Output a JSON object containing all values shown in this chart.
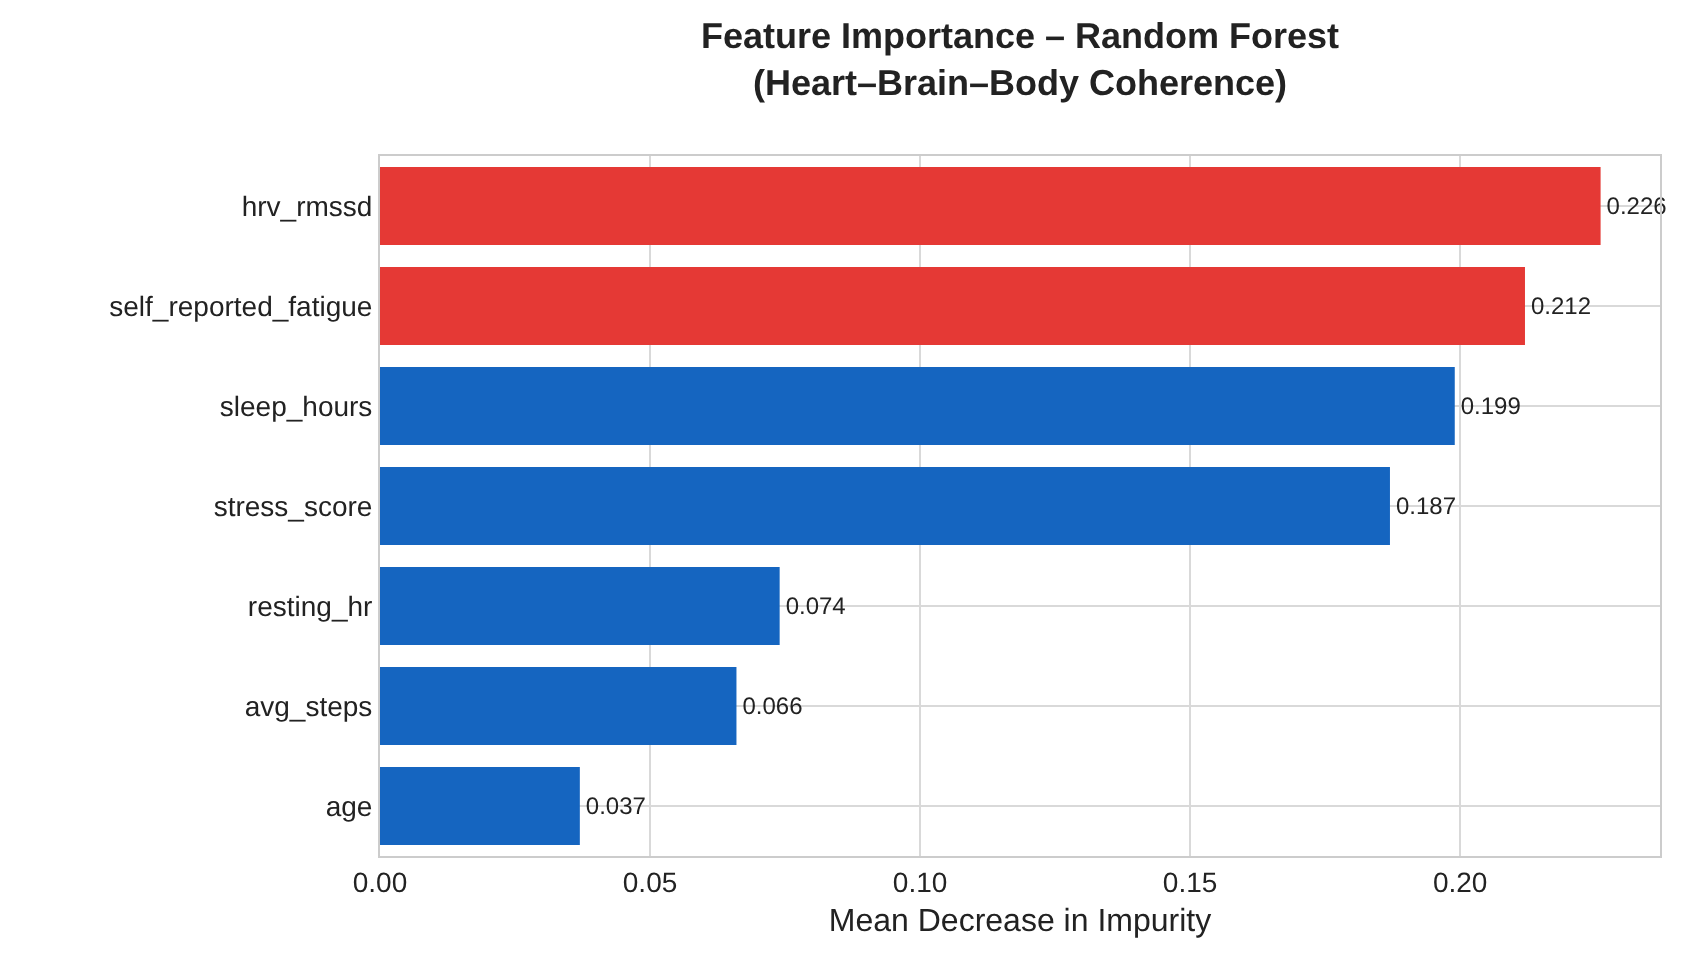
{
  "chart_data": {
    "type": "bar",
    "orientation": "horizontal",
    "title": "Feature Importance – Random Forest\n(Heart–Brain–Body Coherence)",
    "xlabel": "Mean Decrease in Impurity",
    "categories": [
      "hrv_rmssd",
      "self_reported_fatigue",
      "sleep_hours",
      "stress_score",
      "resting_hr",
      "avg_steps",
      "age"
    ],
    "values": [
      0.226,
      0.212,
      0.199,
      0.187,
      0.074,
      0.066,
      0.037
    ],
    "colors": [
      "#e53935",
      "#e53935",
      "#1565c0",
      "#1565c0",
      "#1565c0",
      "#1565c0",
      "#1565c0"
    ],
    "xlim": [
      0,
      0.237
    ],
    "xticks": [
      {
        "value": 0,
        "label": "0.00"
      },
      {
        "value": 0.05,
        "label": "0.05"
      },
      {
        "value": 0.1,
        "label": "0.10"
      },
      {
        "value": 0.15,
        "label": "0.15"
      },
      {
        "value": 0.2,
        "label": "0.20"
      }
    ],
    "grid": true,
    "data_labels": true
  }
}
